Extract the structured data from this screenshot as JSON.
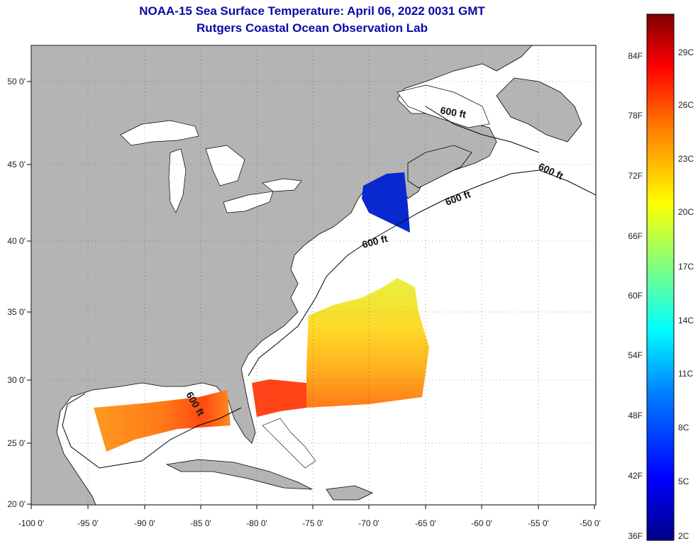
{
  "header": {
    "title": "NOAA-15 Sea Surface Temperature:  April 06, 2022 0031 GMT",
    "subtitle": "Rutgers Coastal Ocean Observation Lab"
  },
  "axes": {
    "lon_ticks": [
      "-100 0'",
      "-95 0'",
      "-90 0'",
      "-85 0'",
      "-80 0'",
      "-75 0'",
      "-70 0'",
      "-65 0'",
      "-60 0'",
      "-55 0'",
      "-50 0'"
    ],
    "lat_ticks": [
      "50 0'",
      "45 0'",
      "40 0'",
      "35 0'",
      "30 0'",
      "25 0'",
      "20 0'"
    ]
  },
  "contour_labels": [
    "600 ft",
    "600 ft",
    "600 ft",
    "600 ft",
    "600 ft"
  ],
  "colorbar": {
    "fahrenheit": [
      "84F",
      "78F",
      "72F",
      "66F",
      "60F",
      "54F",
      "48F",
      "42F",
      "36F"
    ],
    "celsius": [
      "29C",
      "26C",
      "23C",
      "20C",
      "17C",
      "14C",
      "11C",
      "8C",
      "5C",
      "2C"
    ],
    "colors": [
      "#00008b",
      "#0000ff",
      "#0080ff",
      "#00ffff",
      "#80ff80",
      "#ffff00",
      "#ff8000",
      "#ff0000",
      "#800000"
    ]
  },
  "colors": {
    "land": "#b4b4b4",
    "ocean": "#ffffff",
    "title": "#0a0aa8"
  }
}
